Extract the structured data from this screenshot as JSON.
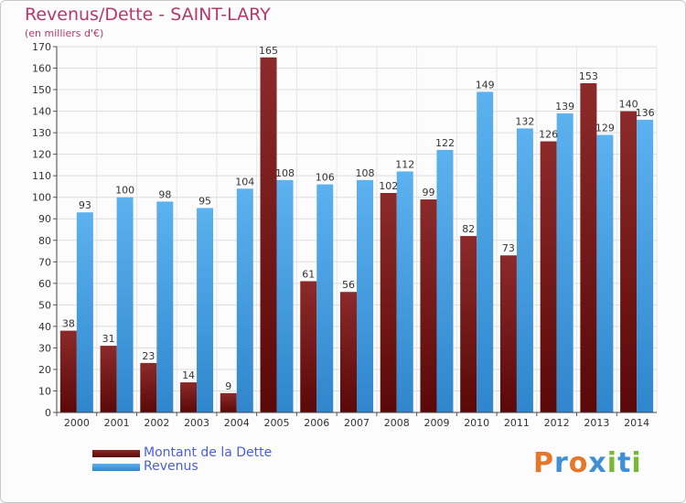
{
  "header": {
    "title": "Revenus/Dette - SAINT-LARY",
    "subtitle": "(en milliers d'€)"
  },
  "legend": {
    "debt_label": "Montant de la Dette",
    "revenue_label": "Revenus"
  },
  "logo": {
    "text": "Proxiti",
    "letters": [
      "P",
      "r",
      "o",
      "x",
      "i",
      "t",
      "i"
    ],
    "colors": [
      "#e5772b",
      "#3f8fd6",
      "#e5772b",
      "#3f8fd6",
      "#79b832",
      "#3f8fd6",
      "#79b832"
    ]
  },
  "chart_data": {
    "type": "bar",
    "title": "Revenus/Dette - SAINT-LARY",
    "subtitle": "(en milliers d'€)",
    "categories": [
      "2000",
      "2001",
      "2002",
      "2003",
      "2004",
      "2005",
      "2006",
      "2007",
      "2008",
      "2009",
      "2010",
      "2011",
      "2012",
      "2013",
      "2014"
    ],
    "series": [
      {
        "name": "Montant de la Dette",
        "color": "#7a1c1c",
        "values": [
          38,
          31,
          23,
          14,
          9,
          165,
          61,
          56,
          102,
          99,
          82,
          73,
          126,
          153,
          140
        ]
      },
      {
        "name": "Revenus",
        "color": "#4aa3e6",
        "values": [
          93,
          100,
          98,
          95,
          104,
          108,
          106,
          108,
          112,
          122,
          149,
          132,
          139,
          129,
          136
        ]
      }
    ],
    "ylim": [
      0,
      170
    ],
    "ytick_step": 10,
    "yticks": [
      "0",
      "10",
      "20",
      "30",
      "40",
      "50",
      "60",
      "70",
      "80",
      "90",
      "100",
      "110",
      "120",
      "130",
      "140",
      "150",
      "160",
      "170"
    ],
    "grid": true,
    "data_labels": true,
    "legend_position": "bottom-left"
  }
}
